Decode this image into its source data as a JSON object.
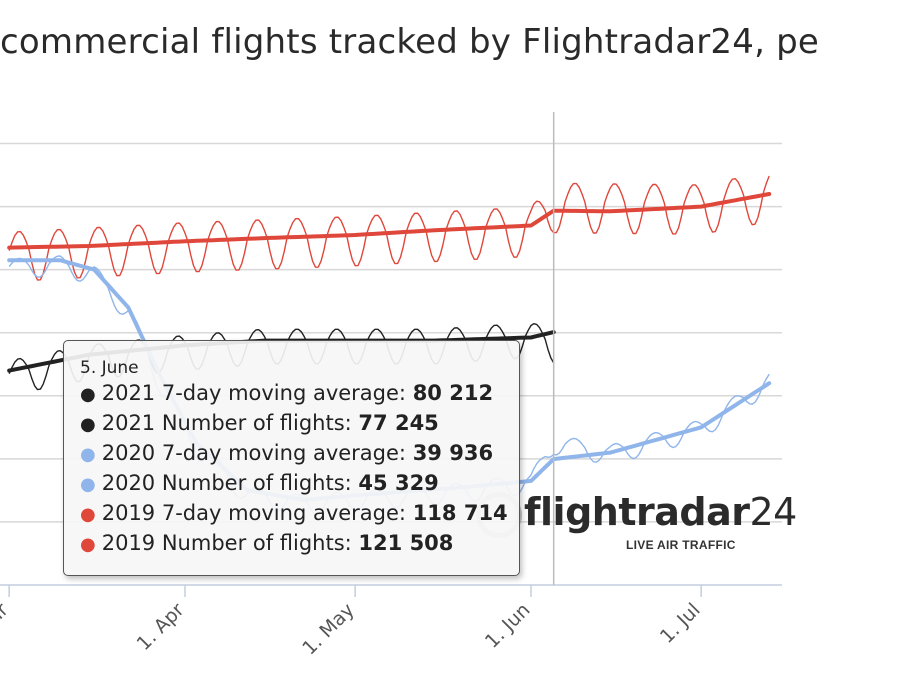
{
  "title": "commercial flights tracked by Flightradar24, pe",
  "colors": {
    "s2021": "#222222",
    "s2020": "#8fb5ea",
    "s2019": "#e0473b",
    "grid": "#d8d8d8",
    "crosshair": "#bbbbbb"
  },
  "tooltip": {
    "date": "5. June",
    "rows": [
      {
        "label": "2021 7-day moving average: ",
        "value": "80 212",
        "color": "#222222"
      },
      {
        "label": "2021 Number of flights: ",
        "value": "77 245",
        "color": "#222222"
      },
      {
        "label": "2020 7-day moving average: ",
        "value": "39 936",
        "color": "#8fb5ea"
      },
      {
        "label": "2020 Number of flights: ",
        "value": "45 329",
        "color": "#8fb5ea"
      },
      {
        "label": "2019 7-day moving average: ",
        "value": "118 714",
        "color": "#e0473b"
      },
      {
        "label": "2019 Number of flights: ",
        "value": "121 508",
        "color": "#e0473b"
      }
    ]
  },
  "logo": {
    "word": "flightradar",
    "num": "24",
    "sub": "LIVE AIR TRAFFIC"
  },
  "chart_data": {
    "type": "line",
    "x_type": "date",
    "x_range": [
      "2021-03-01",
      "2021-07-13"
    ],
    "ylim": [
      0,
      150000
    ],
    "y_gridlines": [
      0,
      20000,
      40000,
      60000,
      80000,
      100000,
      120000,
      140000
    ],
    "grid": true,
    "crosshair_x": "2021-06-05",
    "x_ticks": [
      "ar",
      "1. Apr",
      "1. May",
      "1. Jun",
      "1. Jul"
    ],
    "x_tick_dates": [
      "2021-03-01",
      "2021-04-01",
      "2021-05-01",
      "2021-06-01",
      "2021-07-01"
    ],
    "series": [
      {
        "name": "2019 7-day moving average",
        "color": "#e0473b",
        "style": "smooth",
        "points": [
          [
            "2021-03-01",
            107000
          ],
          [
            "2021-03-15",
            107500
          ],
          [
            "2021-04-01",
            109000
          ],
          [
            "2021-04-15",
            110000
          ],
          [
            "2021-05-01",
            111000
          ],
          [
            "2021-05-15",
            112500
          ],
          [
            "2021-06-01",
            114000
          ],
          [
            "2021-06-05",
            118714
          ],
          [
            "2021-06-15",
            118500
          ],
          [
            "2021-07-01",
            120000
          ],
          [
            "2021-07-13",
            124000
          ]
        ]
      },
      {
        "name": "2019 Number of flights",
        "color": "#e0473b",
        "style": "daily",
        "points": [
          [
            "2021-03-01",
            106000
          ],
          [
            "2021-04-01",
            109000
          ],
          [
            "2021-05-01",
            111000
          ],
          [
            "2021-06-01",
            114000
          ],
          [
            "2021-06-05",
            121508
          ],
          [
            "2021-07-01",
            121000
          ],
          [
            "2021-07-13",
            125000
          ]
        ],
        "weekly_amplitude": 10000
      },
      {
        "name": "2020 7-day moving average",
        "color": "#8fb5ea",
        "style": "smooth",
        "points": [
          [
            "2021-03-01",
            103000
          ],
          [
            "2021-03-10",
            103000
          ],
          [
            "2021-03-16",
            100000
          ],
          [
            "2021-03-22",
            88000
          ],
          [
            "2021-03-28",
            65000
          ],
          [
            "2021-04-03",
            45000
          ],
          [
            "2021-04-12",
            30000
          ],
          [
            "2021-04-22",
            27000
          ],
          [
            "2021-05-05",
            29000
          ],
          [
            "2021-05-20",
            31000
          ],
          [
            "2021-06-01",
            33000
          ],
          [
            "2021-06-05",
            39936
          ],
          [
            "2021-06-15",
            42000
          ],
          [
            "2021-07-01",
            50000
          ],
          [
            "2021-07-13",
            64000
          ]
        ]
      },
      {
        "name": "2020 Number of flights",
        "color": "#8fb5ea",
        "style": "daily",
        "points": [
          [
            "2021-03-01",
            101000
          ],
          [
            "2021-03-10",
            102000
          ],
          [
            "2021-03-16",
            99000
          ],
          [
            "2021-03-22",
            87000
          ],
          [
            "2021-03-28",
            63000
          ],
          [
            "2021-04-03",
            44000
          ],
          [
            "2021-04-12",
            29000
          ],
          [
            "2021-04-22",
            26000
          ],
          [
            "2021-05-05",
            28000
          ],
          [
            "2021-05-20",
            30000
          ],
          [
            "2021-06-01",
            33000
          ],
          [
            "2021-06-05",
            45329
          ],
          [
            "2021-06-15",
            42000
          ],
          [
            "2021-07-01",
            50000
          ],
          [
            "2021-07-13",
            65000
          ]
        ],
        "weekly_amplitude": 4000
      },
      {
        "name": "2021 7-day moving average",
        "color": "#222222",
        "style": "smooth",
        "points": [
          [
            "2021-03-01",
            68000
          ],
          [
            "2021-03-15",
            73000
          ],
          [
            "2021-04-01",
            76000
          ],
          [
            "2021-04-15",
            77500
          ],
          [
            "2021-05-01",
            77500
          ],
          [
            "2021-05-15",
            77500
          ],
          [
            "2021-06-01",
            78500
          ],
          [
            "2021-06-05",
            80212
          ]
        ]
      },
      {
        "name": "2021 Number of flights",
        "color": "#222222",
        "style": "daily",
        "points": [
          [
            "2021-03-01",
            67000
          ],
          [
            "2021-03-15",
            72000
          ],
          [
            "2021-04-01",
            75000
          ],
          [
            "2021-04-15",
            77000
          ],
          [
            "2021-05-01",
            77000
          ],
          [
            "2021-05-15",
            77000
          ],
          [
            "2021-06-01",
            79000
          ],
          [
            "2021-06-05",
            77245
          ]
        ],
        "weekly_amplitude": 7000
      }
    ]
  }
}
